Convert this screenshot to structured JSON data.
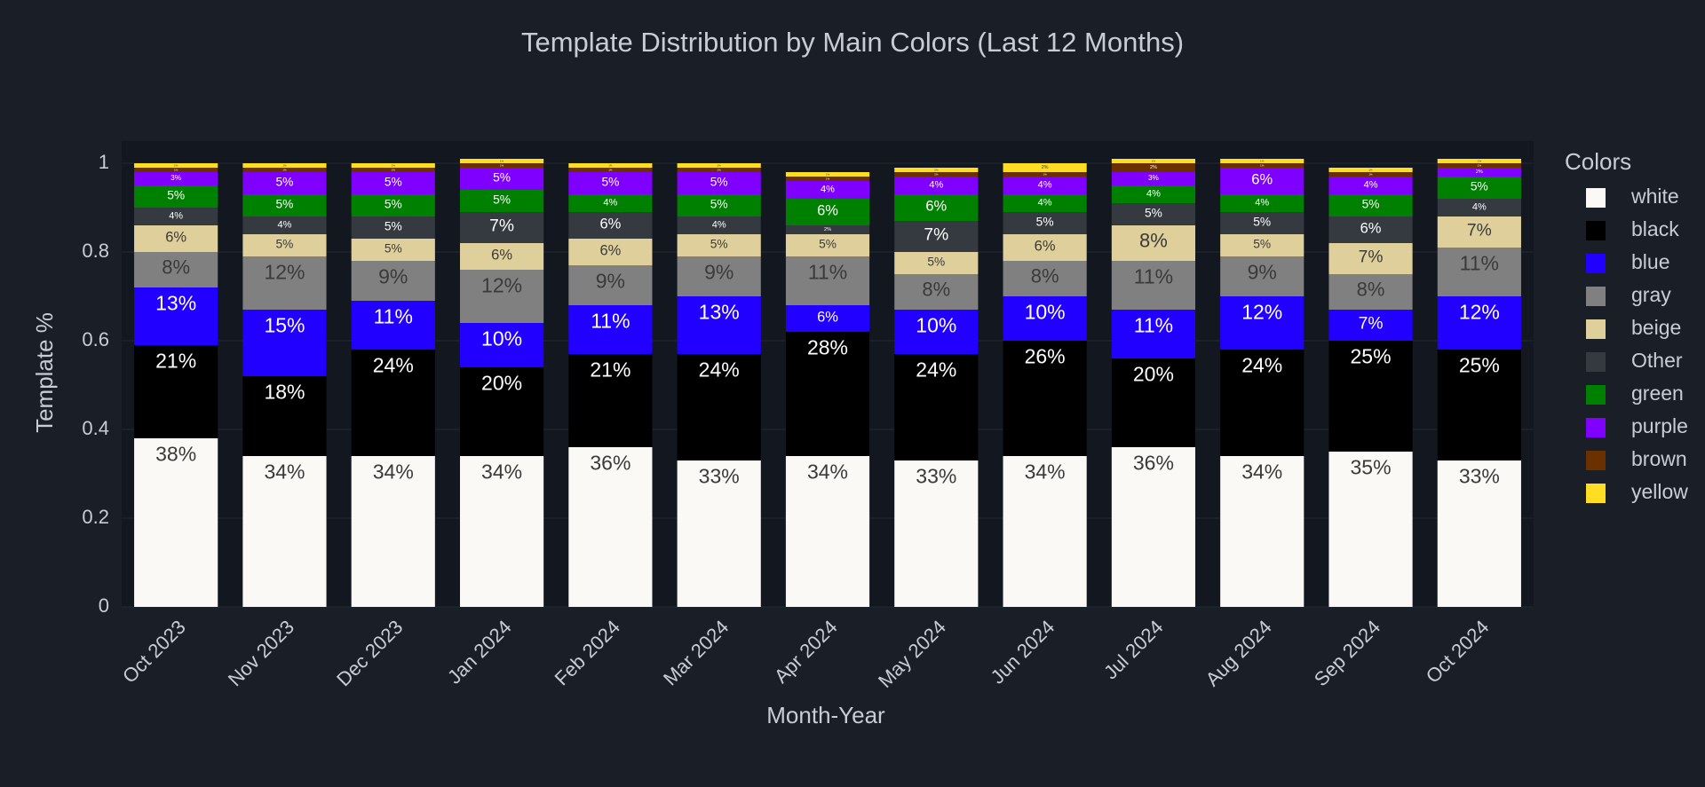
{
  "chart_data": {
    "type": "stacked_bar",
    "title": "Template Distribution by Main Colors (Last 12 Months)",
    "x_label": "Month-Year",
    "y_label": "Template %",
    "legend_title": "Colors",
    "categories": [
      "Oct 2023",
      "Nov 2023",
      "Dec 2023",
      "Jan 2024",
      "Feb 2024",
      "Mar 2024",
      "Apr 2024",
      "May 2024",
      "Jun 2024",
      "Jul 2024",
      "Aug 2024",
      "Sep 2024",
      "Oct 2024"
    ],
    "ylim": [
      0,
      1.05
    ],
    "yticks": [
      0,
      0.2,
      0.4,
      0.6,
      0.8,
      1
    ],
    "series": [
      {
        "name": "white",
        "color": "#faf9f5",
        "values": [
          0.38,
          0.34,
          0.34,
          0.34,
          0.36,
          0.33,
          0.34,
          0.33,
          0.34,
          0.36,
          0.34,
          0.35,
          0.33
        ],
        "value_labels": [
          "38%",
          "34%",
          "34%",
          "34%",
          "36%",
          "33%",
          "34%",
          "33%",
          "34%",
          "36%",
          "34%",
          "35%",
          "33%"
        ]
      },
      {
        "name": "black",
        "color": "#000000",
        "values": [
          0.21,
          0.18,
          0.24,
          0.2,
          0.21,
          0.24,
          0.28,
          0.24,
          0.26,
          0.2,
          0.24,
          0.25,
          0.25
        ],
        "value_labels": [
          "21%",
          "18%",
          "24%",
          "20%",
          "21%",
          "24%",
          "28%",
          "24%",
          "26%",
          "20%",
          "24%",
          "25%",
          "25%"
        ]
      },
      {
        "name": "blue",
        "color": "#2200ff",
        "values": [
          0.13,
          0.15,
          0.11,
          0.1,
          0.11,
          0.13,
          0.06,
          0.1,
          0.1,
          0.11,
          0.12,
          0.07,
          0.12
        ],
        "value_labels": [
          "13%",
          "15%",
          "11%",
          "10%",
          "11%",
          "13%",
          "6%",
          "10%",
          "10%",
          "11%",
          "12%",
          "7%",
          "12%"
        ]
      },
      {
        "name": "gray",
        "color": "#808080",
        "values": [
          0.08,
          0.12,
          0.09,
          0.12,
          0.09,
          0.09,
          0.11,
          0.08,
          0.08,
          0.11,
          0.09,
          0.08,
          0.11
        ],
        "value_labels": [
          "8%",
          "12%",
          "9%",
          "12%",
          "9%",
          "9%",
          "11%",
          "8%",
          "8%",
          "11%",
          "9%",
          "8%",
          "11%"
        ]
      },
      {
        "name": "beige",
        "color": "#dfcf9a",
        "values": [
          0.06,
          0.05,
          0.05,
          0.06,
          0.06,
          0.05,
          0.05,
          0.05,
          0.06,
          0.08,
          0.05,
          0.07,
          0.07
        ],
        "value_labels": [
          "6%",
          "5%",
          "5%",
          "6%",
          "6%",
          "5%",
          "5%",
          "5%",
          "6%",
          "8%",
          "5%",
          "7%",
          "7%"
        ]
      },
      {
        "name": "Other",
        "color": "#343a40",
        "values": [
          0.04,
          0.04,
          0.05,
          0.07,
          0.06,
          0.04,
          0.02,
          0.07,
          0.05,
          0.05,
          0.05,
          0.06,
          0.04
        ],
        "value_labels": [
          "4%",
          "4%",
          "5%",
          "7%",
          "6%",
          "4%",
          "2%",
          "7%",
          "5%",
          "5%",
          "5%",
          "6%",
          "4%"
        ]
      },
      {
        "name": "green",
        "color": "#008000",
        "values": [
          0.05,
          0.05,
          0.05,
          0.05,
          0.04,
          0.05,
          0.06,
          0.06,
          0.04,
          0.04,
          0.04,
          0.05,
          0.05
        ],
        "value_labels": [
          "5%",
          "5%",
          "5%",
          "5%",
          "4%",
          "5%",
          "6%",
          "6%",
          "4%",
          "4%",
          "4%",
          "5%",
          "5%"
        ]
      },
      {
        "name": "purple",
        "color": "#7f00ff",
        "values": [
          0.03,
          0.05,
          0.05,
          0.05,
          0.05,
          0.05,
          0.04,
          0.04,
          0.04,
          0.03,
          0.06,
          0.04,
          0.02
        ],
        "value_labels": [
          "3%",
          "5%",
          "5%",
          "5%",
          "5%",
          "5%",
          "4%",
          "4%",
          "4%",
          "3%",
          "6%",
          "4%",
          "2%"
        ]
      },
      {
        "name": "brown",
        "color": "#6b3000",
        "values": [
          0.01,
          0.01,
          0.01,
          0.01,
          0.01,
          0.01,
          0.01,
          0.01,
          0.01,
          0.02,
          0.01,
          0.01,
          0.01
        ],
        "value_labels": [
          "1%",
          "1%",
          "1%",
          "1%",
          "1%",
          "1%",
          "1%",
          "1%",
          "1%",
          "2%",
          "1%",
          "1%",
          "1%"
        ]
      },
      {
        "name": "yellow",
        "color": "#ffdd22",
        "values": [
          0.01,
          0.01,
          0.01,
          0.01,
          0.01,
          0.01,
          0.01,
          0.01,
          0.02,
          0.01,
          0.01,
          0.01,
          0.01
        ],
        "value_labels": [
          "1%",
          "1%",
          "1%",
          "1%",
          "1%",
          "1%",
          "1%",
          "1%",
          "2%",
          "1%",
          "1%",
          "1%",
          "1%"
        ]
      }
    ]
  }
}
